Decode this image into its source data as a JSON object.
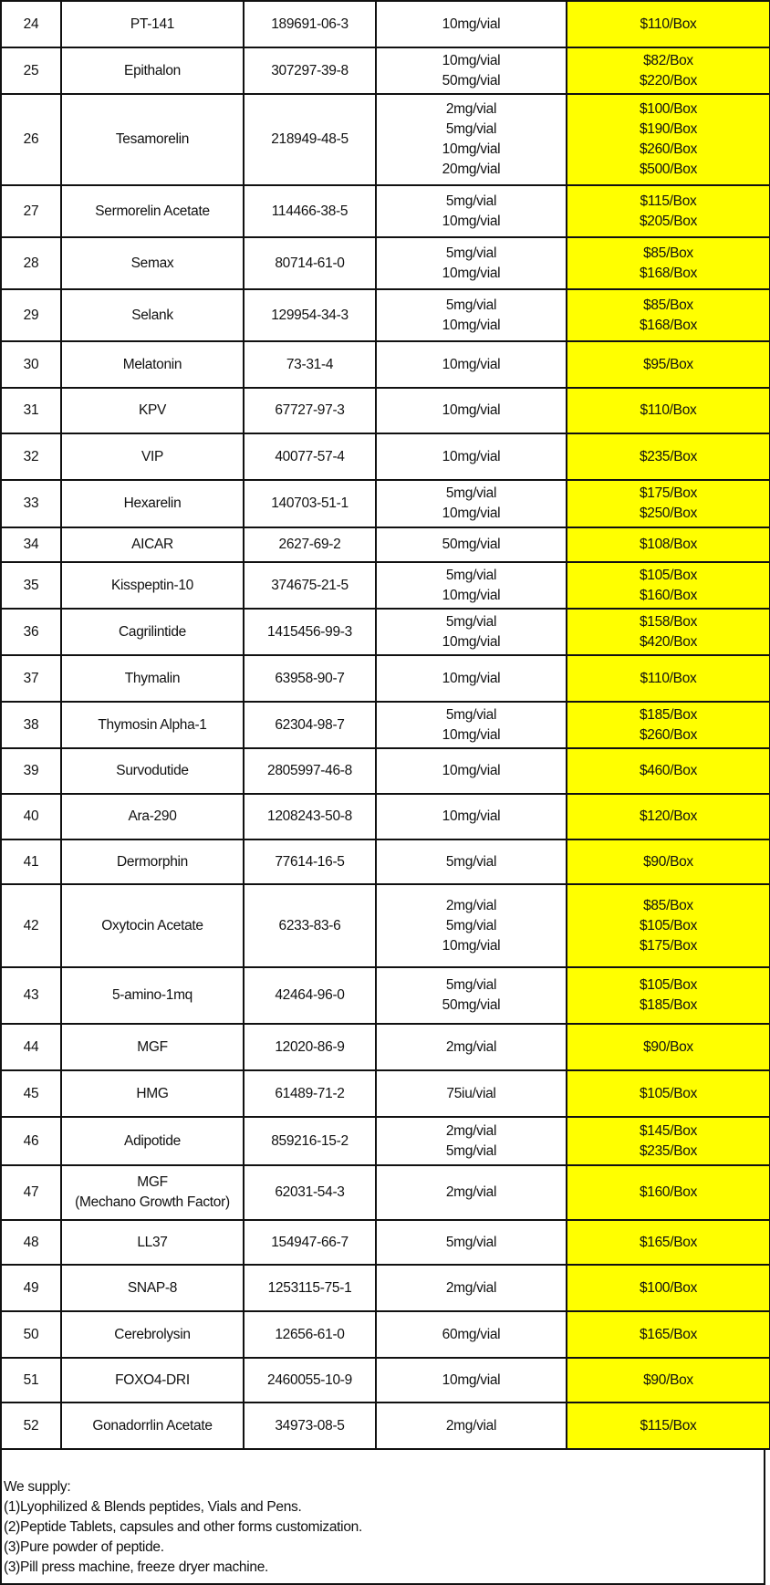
{
  "rows": [
    {
      "no": "24",
      "name": [
        "PT-141"
      ],
      "cas": "189691-06-3",
      "spec": [
        "10mg/vial"
      ],
      "price": [
        "$110/Box"
      ]
    },
    {
      "no": "25",
      "name": [
        "Epithalon"
      ],
      "cas": "307297-39-8",
      "spec": [
        "10mg/vial",
        "50mg/vial"
      ],
      "price": [
        "$82/Box",
        "$220/Box"
      ]
    },
    {
      "no": "26",
      "name": [
        "Tesamorelin"
      ],
      "cas": "218949-48-5",
      "spec": [
        "2mg/vial",
        "5mg/vial",
        "10mg/vial",
        "20mg/vial"
      ],
      "price": [
        "$100/Box",
        "$190/Box",
        "$260/Box",
        "$500/Box"
      ]
    },
    {
      "no": "27",
      "name": [
        "Sermorelin Acetate"
      ],
      "cas": "114466-38-5",
      "spec": [
        "5mg/vial",
        "10mg/vial"
      ],
      "price": [
        "$115/Box",
        "$205/Box"
      ]
    },
    {
      "no": "28",
      "name": [
        "Semax"
      ],
      "cas": "80714-61-0",
      "spec": [
        "5mg/vial",
        "10mg/vial"
      ],
      "price": [
        "$85/Box",
        "$168/Box"
      ]
    },
    {
      "no": "29",
      "name": [
        "Selank"
      ],
      "cas": "129954-34-3",
      "spec": [
        "5mg/vial",
        "10mg/vial"
      ],
      "price": [
        "$85/Box",
        "$168/Box"
      ]
    },
    {
      "no": "30",
      "name": [
        "Melatonin"
      ],
      "cas": "73-31-4",
      "spec": [
        "10mg/vial"
      ],
      "price": [
        "$95/Box"
      ]
    },
    {
      "no": "31",
      "name": [
        "KPV"
      ],
      "cas": "67727-97-3",
      "spec": [
        "10mg/vial"
      ],
      "price": [
        "$110/Box"
      ]
    },
    {
      "no": "32",
      "name": [
        "VIP"
      ],
      "cas": "40077-57-4",
      "spec": [
        "10mg/vial"
      ],
      "price": [
        "$235/Box"
      ]
    },
    {
      "no": "33",
      "name": [
        "Hexarelin"
      ],
      "cas": "140703-51-1",
      "spec": [
        "5mg/vial",
        "10mg/vial"
      ],
      "price": [
        "$175/Box",
        "$250/Box"
      ]
    },
    {
      "no": "34",
      "name": [
        "AICAR"
      ],
      "cas": "2627-69-2",
      "spec": [
        "50mg/vial"
      ],
      "price": [
        "$108/Box"
      ]
    },
    {
      "no": "35",
      "name": [
        "Kisspeptin-10"
      ],
      "cas": "374675-21-5",
      "spec": [
        "5mg/vial",
        "10mg/vial"
      ],
      "price": [
        "$105/Box",
        "$160/Box"
      ]
    },
    {
      "no": "36",
      "name": [
        "Cagrilintide"
      ],
      "cas": "1415456-99-3",
      "spec": [
        "5mg/vial",
        "10mg/vial"
      ],
      "price": [
        "$158/Box",
        "$420/Box"
      ]
    },
    {
      "no": "37",
      "name": [
        "Thymalin"
      ],
      "cas": "63958-90-7",
      "spec": [
        "10mg/vial"
      ],
      "price": [
        "$110/Box"
      ]
    },
    {
      "no": "38",
      "name": [
        "Thymosin Alpha-1"
      ],
      "cas": "62304-98-7",
      "spec": [
        "5mg/vial",
        "10mg/vial"
      ],
      "price": [
        "$185/Box",
        "$260/Box"
      ]
    },
    {
      "no": "39",
      "name": [
        "Survodutide"
      ],
      "cas": "2805997-46-8",
      "spec": [
        "10mg/vial"
      ],
      "price": [
        "$460/Box"
      ]
    },
    {
      "no": "40",
      "name": [
        "Ara-290"
      ],
      "cas": "1208243-50-8",
      "spec": [
        "10mg/vial"
      ],
      "price": [
        "$120/Box"
      ]
    },
    {
      "no": "41",
      "name": [
        "Dermorphin"
      ],
      "cas": "77614-16-5",
      "spec": [
        "5mg/vial"
      ],
      "price": [
        "$90/Box"
      ]
    },
    {
      "no": "42",
      "name": [
        "Oxytocin Acetate"
      ],
      "cas": "6233-83-6",
      "spec": [
        "2mg/vial",
        "5mg/vial",
        "10mg/vial"
      ],
      "price": [
        "$85/Box",
        "$105/Box",
        "$175/Box"
      ]
    },
    {
      "no": "43",
      "name": [
        "5-amino-1mq"
      ],
      "cas": "42464-96-0",
      "spec": [
        "5mg/vial",
        "50mg/vial"
      ],
      "price": [
        "$105/Box",
        "$185/Box"
      ]
    },
    {
      "no": "44",
      "name": [
        "MGF"
      ],
      "cas": "12020-86-9",
      "spec": [
        "2mg/vial"
      ],
      "price": [
        "$90/Box"
      ]
    },
    {
      "no": "45",
      "name": [
        "HMG"
      ],
      "cas": "61489-71-2",
      "spec": [
        "75iu/vial"
      ],
      "price": [
        "$105/Box"
      ]
    },
    {
      "no": "46",
      "name": [
        "Adipotide"
      ],
      "cas": "859216-15-2",
      "spec": [
        "2mg/vial",
        "5mg/vial"
      ],
      "price": [
        "$145/Box",
        "$235/Box"
      ]
    },
    {
      "no": "47",
      "name": [
        "MGF",
        "(Mechano Growth Factor)"
      ],
      "cas": "62031-54-3",
      "spec": [
        "2mg/vial"
      ],
      "price": [
        "$160/Box"
      ]
    },
    {
      "no": "48",
      "name": [
        "LL37"
      ],
      "cas": "154947-66-7",
      "spec": [
        "5mg/vial"
      ],
      "price": [
        "$165/Box"
      ]
    },
    {
      "no": "49",
      "name": [
        "SNAP-8"
      ],
      "cas": "1253115-75-1",
      "spec": [
        "2mg/vial"
      ],
      "price": [
        "$100/Box"
      ]
    },
    {
      "no": "50",
      "name": [
        "Cerebrolysin"
      ],
      "cas": "12656-61-0",
      "spec": [
        "60mg/vial"
      ],
      "price": [
        "$165/Box"
      ]
    },
    {
      "no": "51",
      "name": [
        "FOXO4-DRI"
      ],
      "cas": "2460055-10-9",
      "spec": [
        "10mg/vial"
      ],
      "price": [
        "$90/Box"
      ]
    },
    {
      "no": "52",
      "name": [
        "Gonadorrlin Acetate"
      ],
      "cas": "34973-08-5",
      "spec": [
        "2mg/vial"
      ],
      "price": [
        "$115/Box"
      ]
    }
  ],
  "notes": [
    "We supply:",
    "(1)Lyophilized & Blends peptides, Vials and Pens.",
    "(2)Peptide Tablets, capsules and other forms customization.",
    "(3)Pure powder of peptide.",
    "(3)Pill press machine, freeze dryer machine."
  ],
  "colors": {
    "price_highlight": "#ffff00",
    "border": "#111111"
  }
}
